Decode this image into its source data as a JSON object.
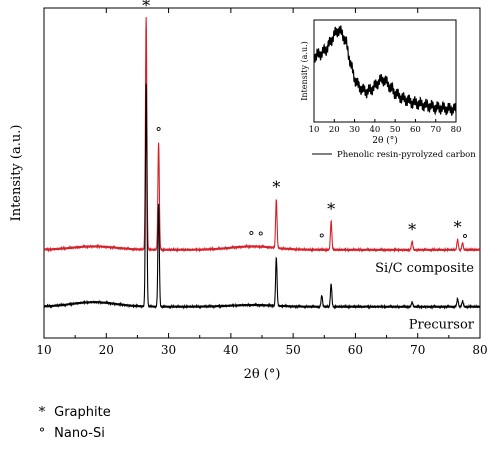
{
  "chart_data": [
    {
      "type": "line",
      "xlabel": "2θ (°)",
      "ylabel": "Intensity (a.u.)",
      "xlim": [
        10,
        80
      ],
      "xticks": [
        10,
        20,
        30,
        40,
        50,
        60,
        70,
        80
      ],
      "grid": false,
      "series": [
        {
          "name": "Si/C composite",
          "color": "#d6202a",
          "baseline": 1.0,
          "peaks": [
            [
              26.4,
              4.1
            ],
            [
              28.4,
              1.9
            ],
            [
              47.3,
              0.85
            ],
            [
              56.1,
              0.5
            ],
            [
              69.1,
              0.15
            ],
            [
              76.4,
              0.18
            ],
            [
              77.2,
              0.12
            ]
          ],
          "hump": [
            [
              18,
              0.06
            ],
            [
              43.5,
              0.06
            ]
          ]
        },
        {
          "name": "Precursor",
          "color": "#000000",
          "baseline": 0.0,
          "peaks": [
            [
              26.4,
              3.9
            ],
            [
              28.4,
              1.8
            ],
            [
              47.3,
              0.85
            ],
            [
              54.6,
              0.2
            ],
            [
              56.1,
              0.4
            ],
            [
              69.1,
              0.08
            ],
            [
              76.4,
              0.14
            ],
            [
              77.2,
              0.1
            ]
          ],
          "hump": [
            [
              18,
              0.08
            ],
            [
              43.5,
              0.03
            ]
          ]
        }
      ],
      "markers": [
        {
          "symbol": "*",
          "x": 26.4,
          "series": "Si/C composite"
        },
        {
          "symbol": "°",
          "x": 28.4,
          "series": "Si/C composite"
        },
        {
          "symbol": "°",
          "x": 43.3,
          "series": "Si/C composite"
        },
        {
          "symbol": "°",
          "x": 44.8,
          "series": "Si/C composite"
        },
        {
          "symbol": "*",
          "x": 47.3,
          "series": "Si/C composite"
        },
        {
          "symbol": "°",
          "x": 54.6,
          "series": "Si/C composite"
        },
        {
          "symbol": "*",
          "x": 56.1,
          "series": "Si/C composite"
        },
        {
          "symbol": "*",
          "x": 69.1,
          "series": "Si/C composite"
        },
        {
          "symbol": "*",
          "x": 76.4,
          "series": "Si/C composite"
        },
        {
          "symbol": "°",
          "x": 77.6,
          "series": "Si/C composite"
        }
      ]
    },
    {
      "type": "line",
      "xlabel": "2θ (°)",
      "ylabel": "Intensity (a.u.)",
      "xlim": [
        10,
        80
      ],
      "xticks": [
        10,
        20,
        30,
        40,
        50,
        60,
        70,
        80
      ],
      "series": [
        {
          "name": "Phenolic resin-pyrolyzed carbon",
          "color": "#000000",
          "x": [
            10,
            12,
            14,
            16,
            18,
            20,
            22,
            24,
            26,
            28,
            30,
            32,
            34,
            36,
            38,
            40,
            42,
            44,
            46,
            48,
            50,
            54,
            58,
            62,
            66,
            70,
            74,
            78,
            80
          ],
          "y": [
            0.7,
            0.72,
            0.74,
            0.78,
            0.86,
            0.95,
            1.0,
            0.96,
            0.84,
            0.62,
            0.45,
            0.36,
            0.32,
            0.3,
            0.32,
            0.36,
            0.42,
            0.44,
            0.4,
            0.34,
            0.28,
            0.22,
            0.18,
            0.16,
            0.14,
            0.12,
            0.11,
            0.1,
            0.1
          ]
        }
      ]
    }
  ],
  "legend": [
    {
      "symbol": "*",
      "label": "Graphite"
    },
    {
      "symbol": "°",
      "label": "Nano-Si"
    }
  ]
}
